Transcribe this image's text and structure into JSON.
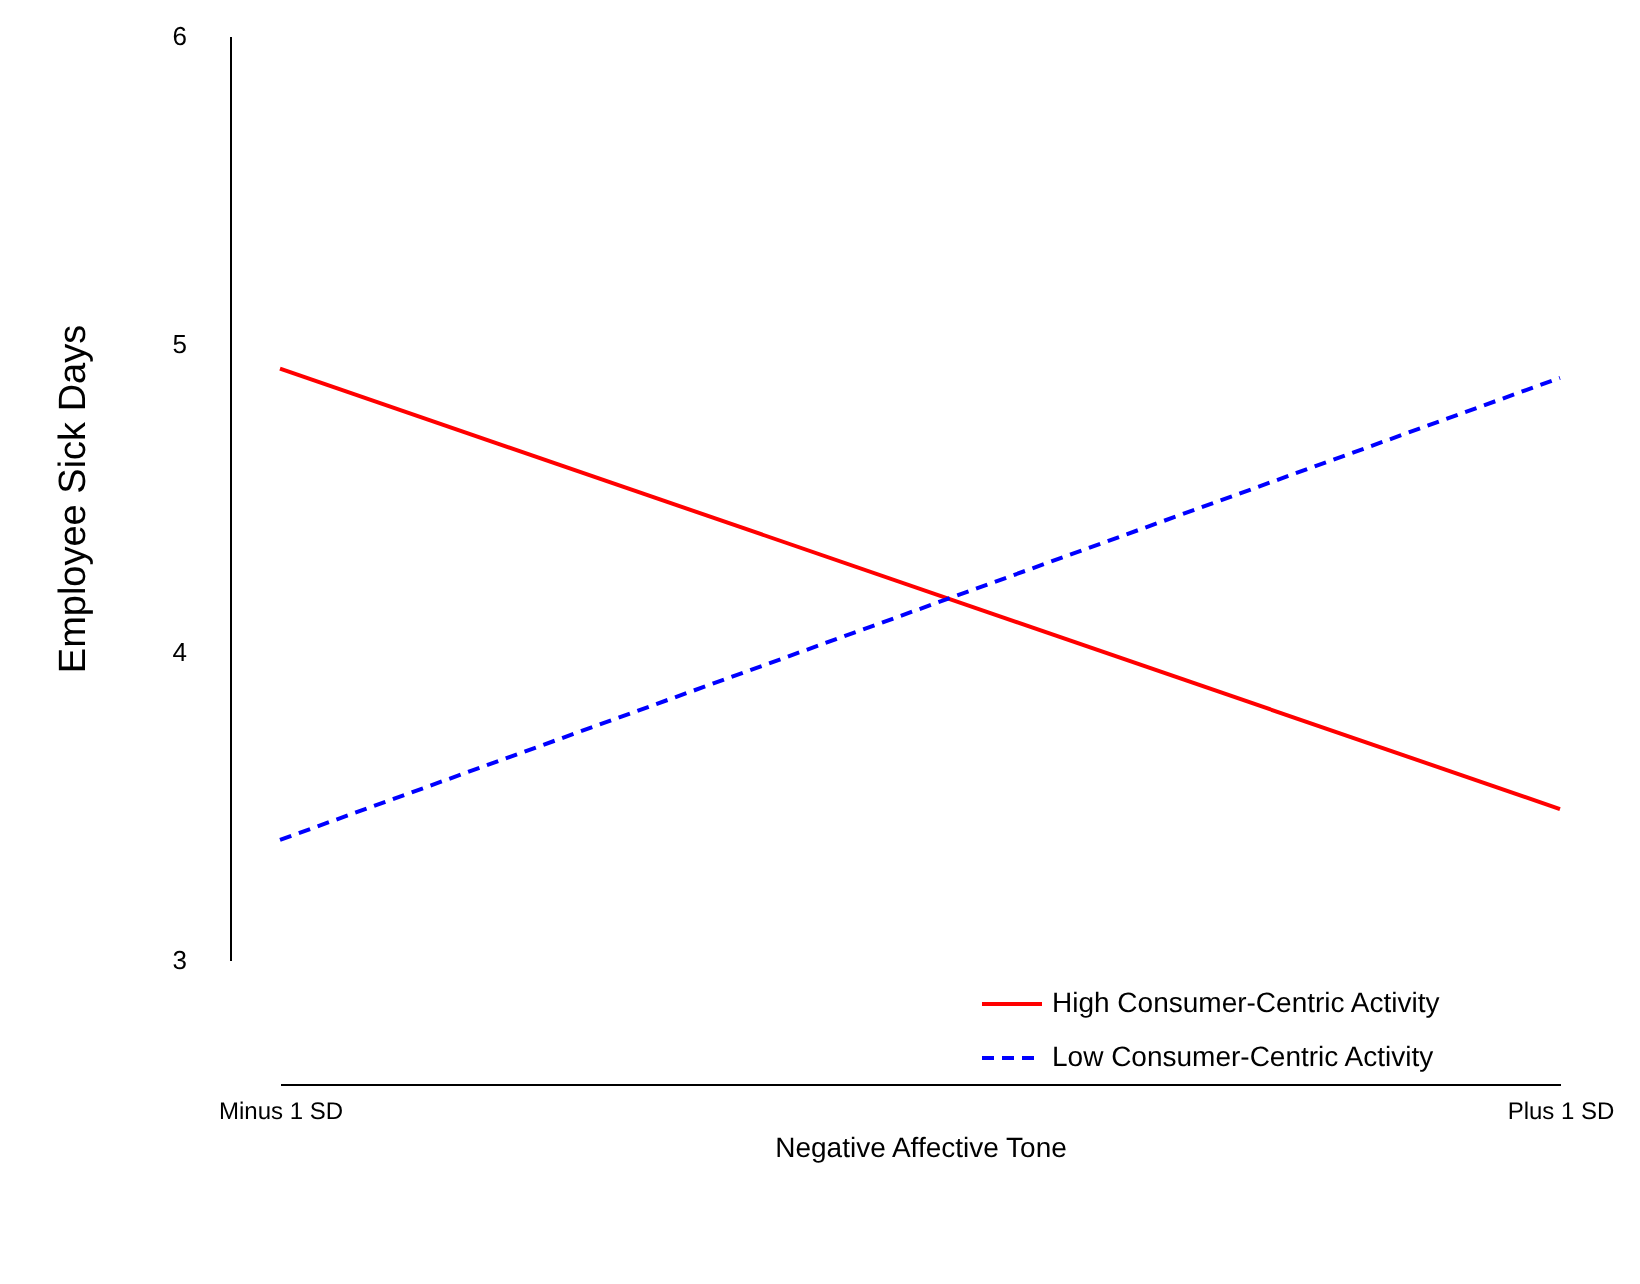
{
  "chart_data": {
    "type": "line",
    "xlabel": "Negative Affective Tone",
    "ylabel": "Employee Sick Days",
    "categories": [
      "Minus 1 SD",
      "Plus 1 SD"
    ],
    "series": [
      {
        "name": "High Consumer-Centric Activity",
        "color": "#ff0000",
        "line_style": "solid",
        "values": [
          4.92,
          3.49
        ]
      },
      {
        "name": "Low Consumer-Centric Activity",
        "color": "#0000ff",
        "line_style": "dashed",
        "values": [
          3.39,
          4.89
        ]
      }
    ],
    "ylim": [
      3,
      6
    ],
    "yticks": [
      3,
      4,
      5,
      6
    ],
    "grid": false,
    "legend": "bottom right",
    "marker": "none"
  }
}
